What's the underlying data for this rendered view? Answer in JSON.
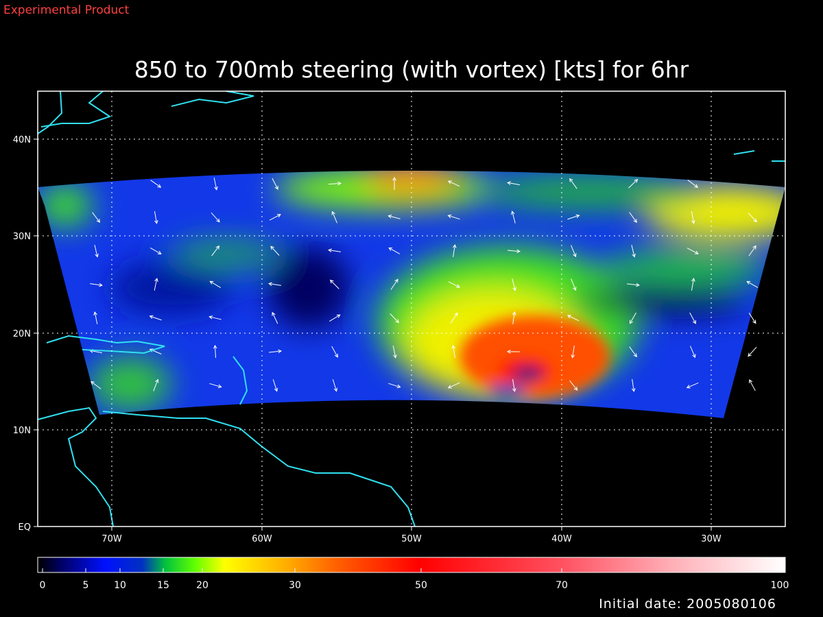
{
  "header": {
    "label": "Experimental Product"
  },
  "title": "850 to 700mb steering (with vortex) [kts] for 6hr",
  "axes": {
    "y_labels": [
      "40N",
      "30N",
      "20N",
      "10N",
      "EQ"
    ],
    "x_labels": [
      "70W",
      "60W",
      "50W",
      "40W",
      "30W"
    ]
  },
  "colorbar": {
    "labels": [
      "0",
      "5",
      "10",
      "15",
      "20",
      "30",
      "50",
      "70",
      "100"
    ]
  },
  "footer": {
    "initial_date": "Initial date: 2005080106"
  }
}
